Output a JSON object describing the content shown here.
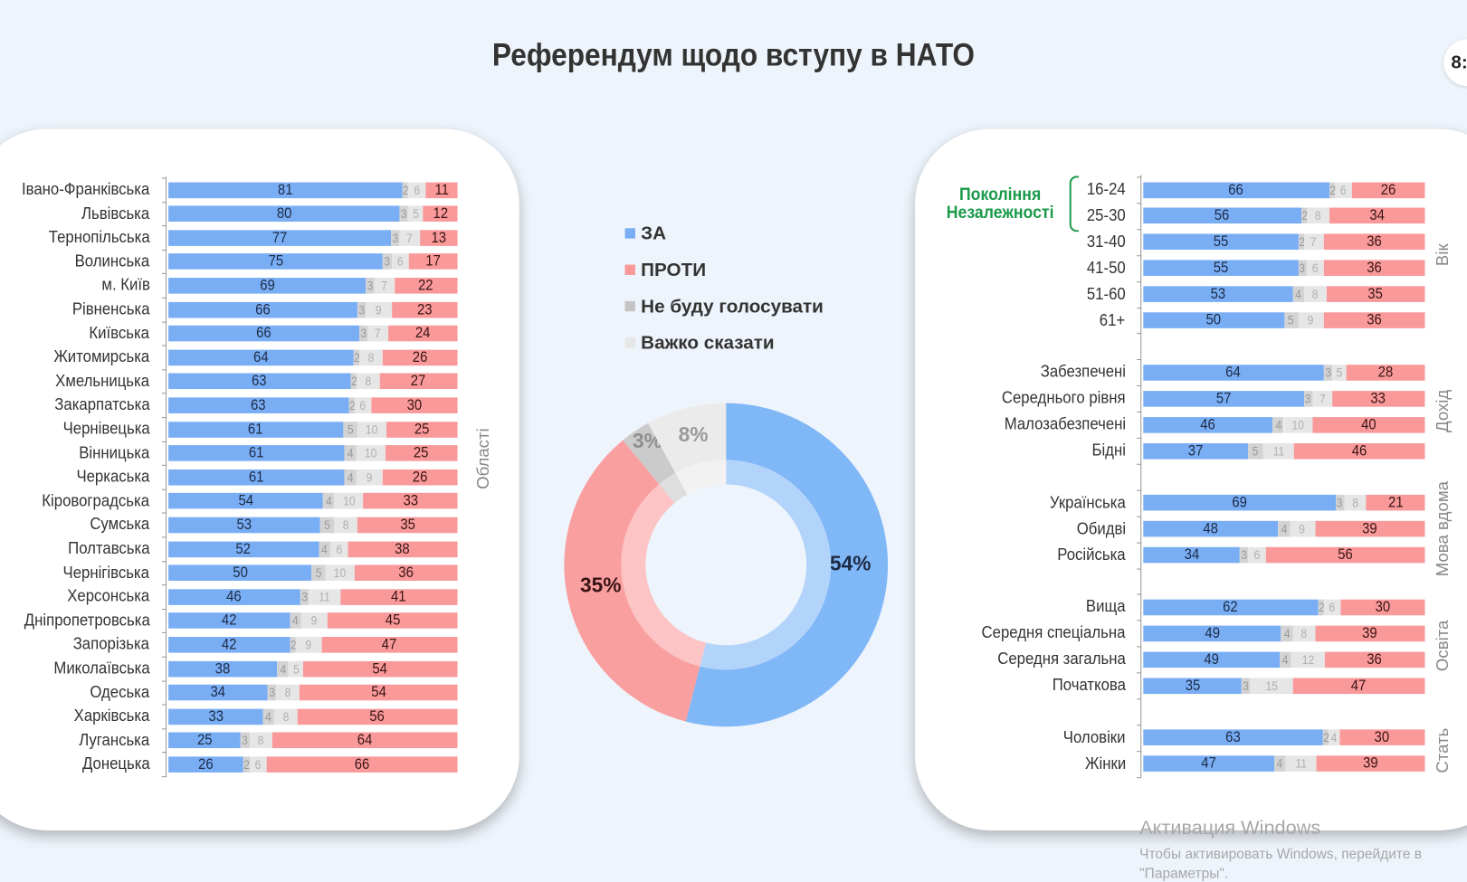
{
  "title": "Референдум щодо вступу в НАТО",
  "page_badge": "8:",
  "legend": [
    {
      "label": "ЗА",
      "color": "#79aef5"
    },
    {
      "label": "ПРОТИ",
      "color": "#f9999a"
    },
    {
      "label": "Не буду голосувати",
      "color": "#c4c4c4"
    },
    {
      "label": "Важко сказати",
      "color": "#e6e6e6"
    }
  ],
  "left_axis_title": "Області",
  "generation_label": [
    "Покоління",
    "Незалежності"
  ],
  "watermark": {
    "line1": "Активация Windows",
    "line2": "Чтобы активировать Windows, перейдите в",
    "line3": "\"Параметры\"."
  },
  "chart_data": [
    {
      "type": "bar",
      "orientation": "horizontal-stacked",
      "title": "Області",
      "series_order": [
        "ЗА",
        "Не буду голосувати",
        "Важко сказати",
        "ПРОТИ"
      ],
      "categories": [
        "Івано-Франківська",
        "Львівська",
        "Тернопільська",
        "Волинська",
        "м. Київ",
        "Рівненська",
        "Київська",
        "Житомирська",
        "Хмельницька",
        "Закарпатська",
        "Чернівецька",
        "Вінницька",
        "Черкаська",
        "Кіровоградська",
        "Сумська",
        "Полтавська",
        "Чернігівська",
        "Херсонська",
        "Дніпропетровська",
        "Запорізька",
        "Миколаївська",
        "Одеська",
        "Харківська",
        "Луганська",
        "Донецька"
      ],
      "series": [
        {
          "name": "ЗА",
          "values": [
            81,
            80,
            77,
            75,
            69,
            66,
            66,
            64,
            63,
            63,
            61,
            61,
            61,
            54,
            53,
            52,
            50,
            46,
            42,
            42,
            38,
            34,
            33,
            25,
            26
          ]
        },
        {
          "name": "Не буду голосувати",
          "values": [
            2,
            3,
            3,
            3,
            3,
            3,
            3,
            2,
            2,
            2,
            5,
            4,
            4,
            4,
            5,
            4,
            5,
            3,
            4,
            2,
            4,
            3,
            4,
            3,
            2
          ]
        },
        {
          "name": "Важко сказати",
          "values": [
            6,
            5,
            7,
            6,
            7,
            9,
            7,
            8,
            8,
            6,
            10,
            10,
            9,
            10,
            8,
            6,
            10,
            11,
            9,
            9,
            5,
            8,
            8,
            8,
            6
          ]
        },
        {
          "name": "ПРОТИ",
          "values": [
            11,
            12,
            13,
            17,
            22,
            23,
            24,
            26,
            27,
            30,
            25,
            25,
            26,
            33,
            35,
            38,
            36,
            41,
            45,
            47,
            54,
            54,
            56,
            64,
            66
          ]
        }
      ],
      "xlim": [
        0,
        100
      ]
    },
    {
      "type": "pie",
      "variant": "donut",
      "categories": [
        "ЗА",
        "ПРОТИ",
        "Не буду голосувати",
        "Важко сказати"
      ],
      "values": [
        54,
        35,
        3,
        8
      ],
      "labels": [
        "54%",
        "35%",
        "3%",
        "8%"
      ]
    },
    {
      "type": "bar",
      "orientation": "horizontal-stacked",
      "series_order": [
        "ЗА",
        "Не буду голосувати",
        "Важко сказати",
        "ПРОТИ"
      ],
      "groups": [
        {
          "name": "Вік",
          "rows": [
            {
              "label": "16-24",
              "values": [
                66,
                2,
                6,
                26
              ]
            },
            {
              "label": "25-30",
              "values": [
                56,
                2,
                8,
                34
              ]
            },
            {
              "label": "31-40",
              "values": [
                55,
                2,
                7,
                36
              ]
            },
            {
              "label": "41-50",
              "values": [
                55,
                3,
                6,
                36
              ]
            },
            {
              "label": "51-60",
              "values": [
                53,
                4,
                8,
                35
              ]
            },
            {
              "label": "61+",
              "values": [
                50,
                5,
                9,
                36
              ]
            }
          ]
        },
        {
          "name": "Дохід",
          "rows": [
            {
              "label": "Забезпечені",
              "values": [
                64,
                3,
                5,
                28
              ]
            },
            {
              "label": "Середнього рівня",
              "values": [
                57,
                3,
                7,
                33
              ]
            },
            {
              "label": "Малозабезпечені",
              "values": [
                46,
                4,
                10,
                40
              ]
            },
            {
              "label": "Бідні",
              "values": [
                37,
                5,
                11,
                46
              ]
            }
          ]
        },
        {
          "name": "Мова вдома",
          "rows": [
            {
              "label": "Українська",
              "values": [
                69,
                3,
                8,
                21
              ]
            },
            {
              "label": "Обидві",
              "values": [
                48,
                4,
                9,
                39
              ]
            },
            {
              "label": "Російська",
              "values": [
                34,
                3,
                6,
                56
              ]
            }
          ]
        },
        {
          "name": "Освіта",
          "rows": [
            {
              "label": "Вища",
              "values": [
                62,
                2,
                6,
                30
              ]
            },
            {
              "label": "Середня спеціальна",
              "values": [
                49,
                4,
                8,
                39
              ]
            },
            {
              "label": "Середня загальна",
              "values": [
                49,
                4,
                12,
                36
              ]
            },
            {
              "label": "Початкова",
              "values": [
                35,
                3,
                15,
                47
              ]
            }
          ]
        },
        {
          "name": "Стать",
          "rows": [
            {
              "label": "Чоловіки",
              "values": [
                63,
                2,
                4,
                30
              ]
            },
            {
              "label": "Жінки",
              "values": [
                47,
                4,
                11,
                39
              ]
            }
          ]
        }
      ],
      "xlim": [
        0,
        100
      ]
    }
  ]
}
